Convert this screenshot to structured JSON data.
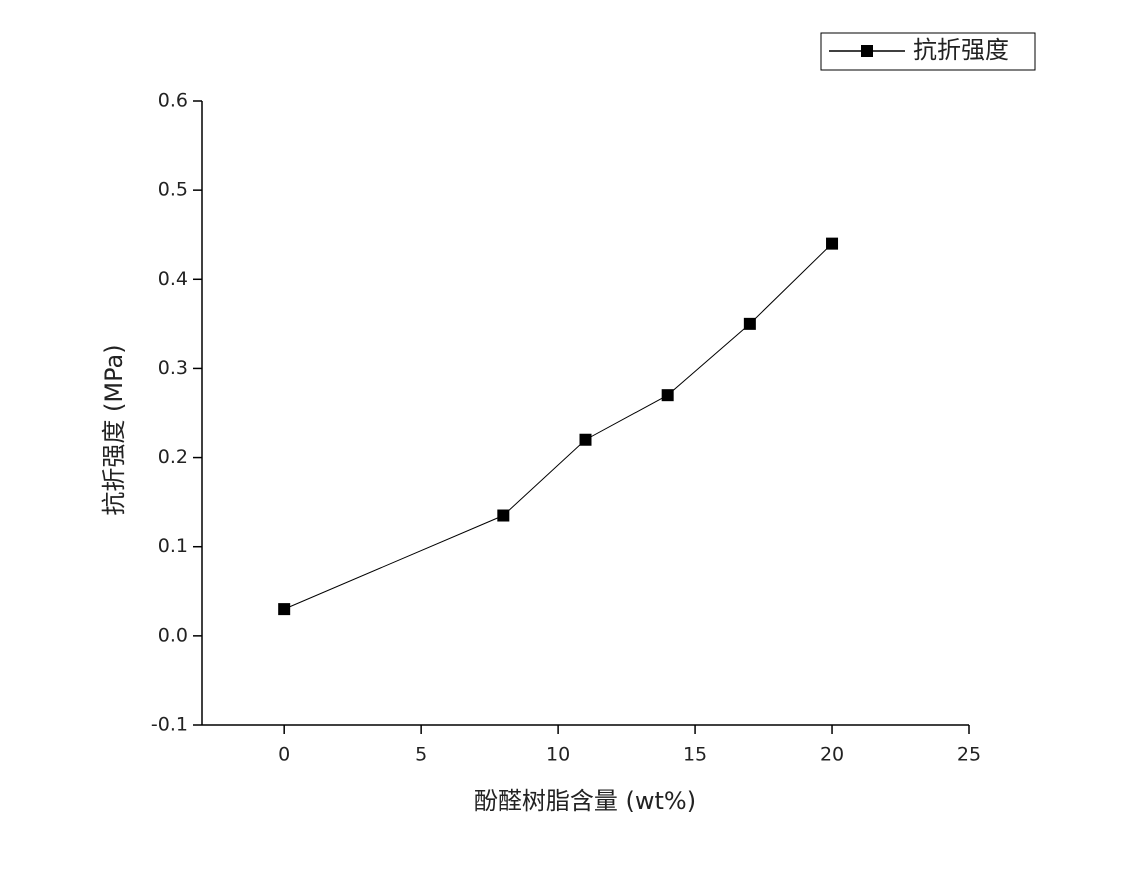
{
  "chart_data": {
    "type": "line",
    "x_label": "酚醛树脂含量 (wt%)",
    "y_label": "抗折强度 (MPa)",
    "x": [
      0,
      8,
      11,
      14,
      17,
      20
    ],
    "series": [
      {
        "name": "抗折强度",
        "color": "#000000",
        "values": [
          0.03,
          0.135,
          0.22,
          0.27,
          0.35,
          0.44
        ]
      }
    ],
    "xlim": [
      -3,
      25
    ],
    "xticks": [
      0,
      5,
      10,
      15,
      20,
      25
    ],
    "ylim": [
      -0.1,
      0.6
    ],
    "yticks": [
      -0.1,
      {
        "value": 0,
        "label": "0.0"
      },
      0.1,
      0.2,
      0.3,
      0.4,
      0.5,
      0.6
    ],
    "legend": "top-right"
  }
}
